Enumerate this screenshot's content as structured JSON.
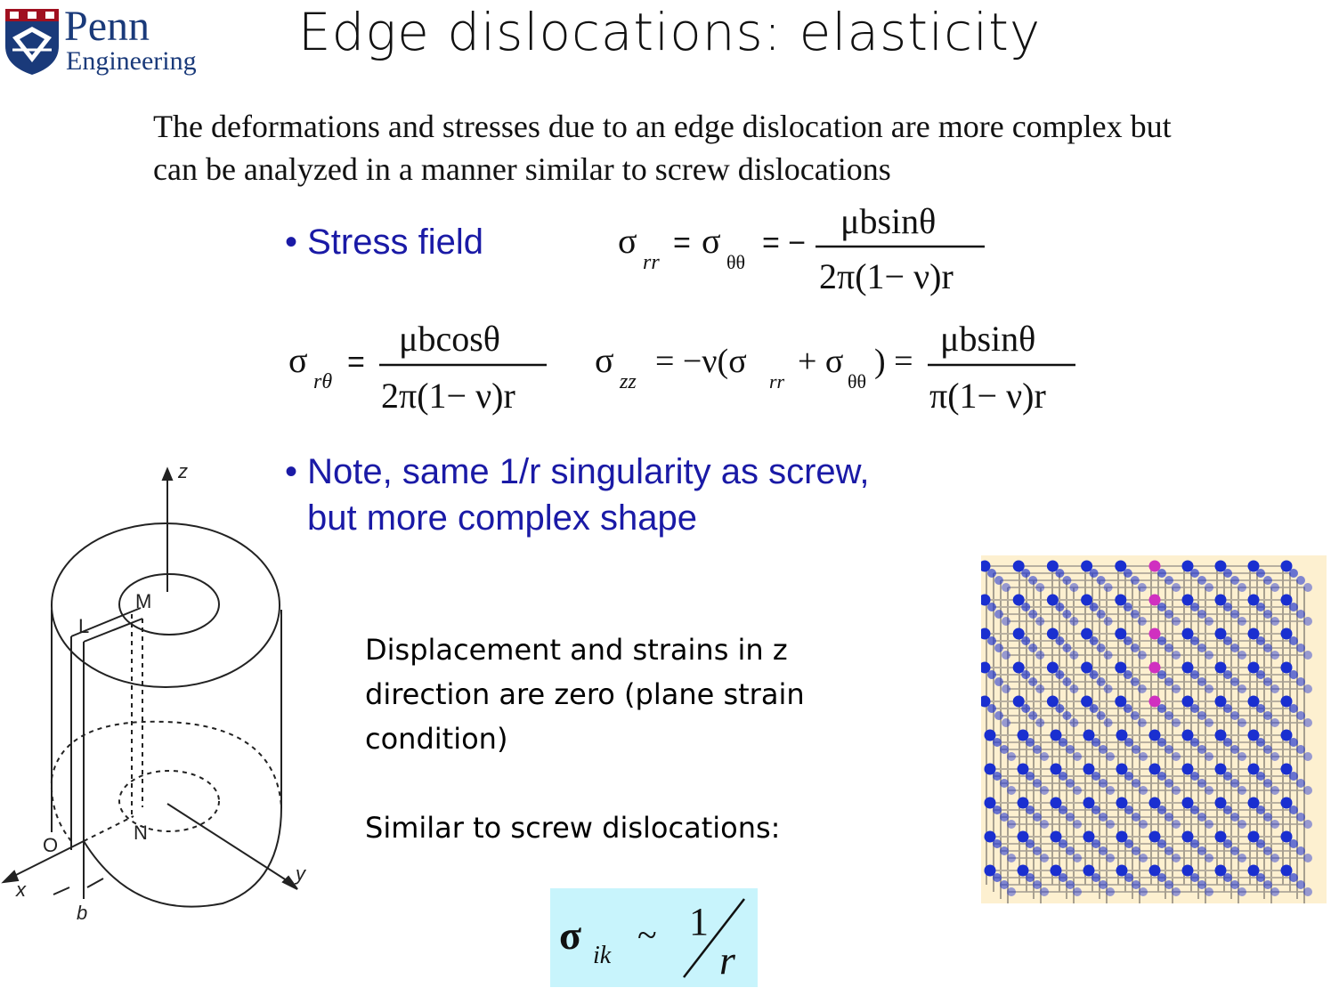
{
  "logo": {
    "line1": "Penn",
    "line2": "Engineering"
  },
  "title": "Edge dislocations:  elasticity",
  "intro": "The deformations and stresses due to an edge dislocation are more complex but can be analyzed in a manner similar to screw dislocations",
  "bullets": {
    "stress_field": "• Stress field",
    "note_line1": "• Note, same 1/r singularity as screw,",
    "note_line2": "but more complex shape"
  },
  "equations": {
    "rr": {
      "lhs1": "σ",
      "sub1": "rr",
      "eq1": "=",
      "lhs2": "σ",
      "sub2": "θθ",
      "eq2": "= −",
      "numerator": "μbsinθ",
      "denominator": "2π(1− ν)r"
    },
    "rtheta": {
      "lhs": "σ",
      "sub": "rθ",
      "eq": "=",
      "numerator": "μbcosθ",
      "denominator": "2π(1− ν)r"
    },
    "zz": {
      "lhs": "σ",
      "sub": "zz",
      "eq": "= −ν(σ",
      "sub_rr": "rr",
      "plus": "+ σ",
      "sub_tt": "θθ",
      "close": ") =",
      "numerator": "μbsinθ",
      "denominator": "π(1− ν)r"
    },
    "scaling": {
      "sigma": "σ",
      "sub": "ik",
      "tilde": "~",
      "num": "1",
      "den": "r"
    }
  },
  "text": {
    "displacement": "Displacement and strains in z direction are zero (plane strain condition)",
    "similar": "Similar to screw dislocations:"
  },
  "diagram_labels": {
    "z": "z",
    "M": "M",
    "L": "L",
    "O": "O",
    "N": "N",
    "x": "x",
    "y": "y",
    "b": "b"
  },
  "colors": {
    "bullet": "#1a1aa6",
    "box": "#c8f4fc",
    "lattice_bg": "#fdf0d0",
    "atom": "#1a2fd0",
    "extra_atom": "#d030c0"
  }
}
